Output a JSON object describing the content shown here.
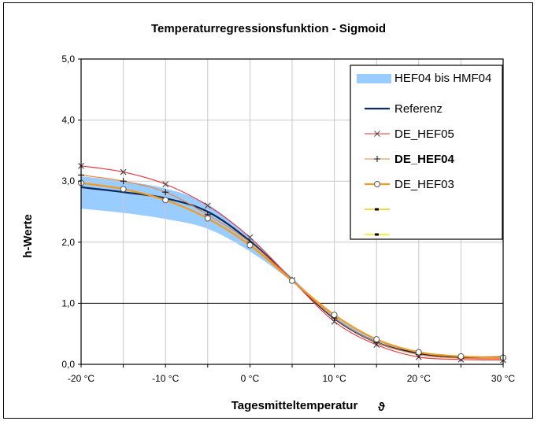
{
  "chart_data": {
    "type": "line",
    "title": "Temperaturregressionsfunktion - Sigmoid",
    "xlabel": "Tagesmitteltemperatur",
    "xlabel_symbol": "ϑ",
    "ylabel": "h-Werte",
    "xlim": [
      -20,
      30
    ],
    "ylim": [
      0,
      5
    ],
    "grid": true,
    "legend_position": "top-right",
    "x_ticks": [
      {
        "value": -20,
        "label": "-20 °C"
      },
      {
        "value": -15,
        "label": ""
      },
      {
        "value": -10,
        "label": "-10 °C"
      },
      {
        "value": -5,
        "label": ""
      },
      {
        "value": 0,
        "label": "0 °C"
      },
      {
        "value": 5,
        "label": ""
      },
      {
        "value": 10,
        "label": "10 °C"
      },
      {
        "value": 15,
        "label": ""
      },
      {
        "value": 20,
        "label": "20 °C"
      },
      {
        "value": 25,
        "label": ""
      },
      {
        "value": 30,
        "label": "30 °C"
      }
    ],
    "y_ticks": [
      {
        "value": 0,
        "label": "0,0"
      },
      {
        "value": 1,
        "label": "1,0"
      },
      {
        "value": 2,
        "label": "2,0"
      },
      {
        "value": 3,
        "label": "3,0"
      },
      {
        "value": 4,
        "label": "4,0"
      },
      {
        "value": 5,
        "label": "5,0"
      }
    ],
    "band": {
      "name": "HEF04 bis HMF04",
      "color": "#99ccff",
      "x": [
        -20,
        -15,
        -10,
        -5,
        0,
        5,
        10,
        15,
        20,
        25,
        30
      ],
      "lower": [
        2.55,
        2.48,
        2.38,
        2.22,
        1.85,
        1.35,
        0.75,
        0.38,
        0.18,
        0.1,
        0.08
      ],
      "upper": [
        3.08,
        3.0,
        2.88,
        2.62,
        2.08,
        1.42,
        0.8,
        0.42,
        0.2,
        0.12,
        0.1
      ]
    },
    "x": [
      -20,
      -15,
      -10,
      -5,
      0,
      5,
      10,
      15,
      20,
      25,
      30
    ],
    "series": [
      {
        "name": "Referenz",
        "color": "#0f2a5e",
        "marker": "none",
        "width": 2.2,
        "bold": false,
        "values": [
          2.9,
          2.82,
          2.72,
          2.5,
          2.02,
          1.38,
          0.75,
          0.36,
          0.18,
          0.12,
          0.12
        ]
      },
      {
        "name": "DE_HEF05",
        "color": "#e8323c",
        "marker": "x",
        "width": 1.1,
        "bold": false,
        "values": [
          3.25,
          3.15,
          2.95,
          2.6,
          2.08,
          1.38,
          0.7,
          0.32,
          0.12,
          0.08,
          0.07
        ]
      },
      {
        "name": "DE_HEF04",
        "color": "#f08030",
        "marker": "+",
        "width": 1.1,
        "bold": true,
        "values": [
          3.1,
          3.0,
          2.82,
          2.45,
          2.0,
          1.38,
          0.76,
          0.36,
          0.16,
          0.1,
          0.09
        ]
      },
      {
        "name": "DE_HEF03",
        "color": "#f59a1c",
        "marker": "o",
        "width": 2.2,
        "bold": false,
        "values": [
          2.97,
          2.87,
          2.69,
          2.39,
          1.95,
          1.37,
          0.81,
          0.41,
          0.2,
          0.13,
          0.11
        ]
      }
    ],
    "legend_extra": [
      {
        "color": "#f5c800"
      },
      {
        "color": "#f5e800"
      }
    ]
  }
}
